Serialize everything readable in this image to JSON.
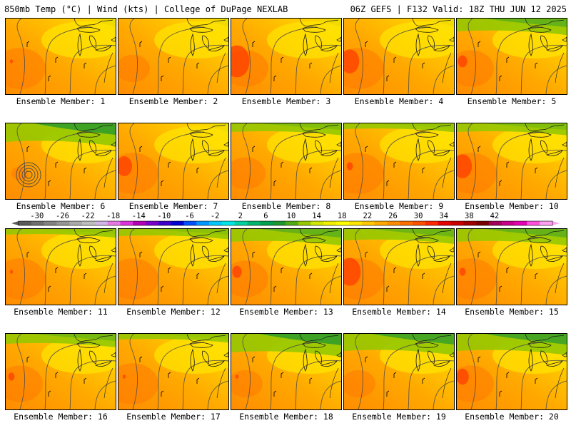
{
  "header": {
    "left": "850mb Temp (°C) | Wind (kts) | College of DuPage NEXLAB",
    "right": "06Z GEFS | F132 Valid: 18Z THU JUN 12 2025"
  },
  "members": [
    {
      "label": "Ensemble Member: 1"
    },
    {
      "label": "Ensemble Member: 2"
    },
    {
      "label": "Ensemble Member: 3"
    },
    {
      "label": "Ensemble Member: 4"
    },
    {
      "label": "Ensemble Member: 5"
    },
    {
      "label": "Ensemble Member: 6"
    },
    {
      "label": "Ensemble Member: 7"
    },
    {
      "label": "Ensemble Member: 8"
    },
    {
      "label": "Ensemble Member: 9"
    },
    {
      "label": "Ensemble Member: 10"
    },
    {
      "label": "Ensemble Member: 11"
    },
    {
      "label": "Ensemble Member: 12"
    },
    {
      "label": "Ensemble Member: 13"
    },
    {
      "label": "Ensemble Member: 14"
    },
    {
      "label": "Ensemble Member: 15"
    },
    {
      "label": "Ensemble Member: 16"
    },
    {
      "label": "Ensemble Member: 17"
    },
    {
      "label": "Ensemble Member: 18"
    },
    {
      "label": "Ensemble Member: 19"
    },
    {
      "label": "Ensemble Member: 20"
    }
  ],
  "colorbar": {
    "tick_labels": [
      "-30",
      "-26",
      "-22",
      "-18",
      "-14",
      "-10",
      "-6",
      "-2",
      "2",
      "6",
      "10",
      "14",
      "18",
      "22",
      "26",
      "30",
      "34",
      "38",
      "42"
    ],
    "colors": [
      "#5a5a5a",
      "#6e6e6e",
      "#828282",
      "#969696",
      "#aaaaaa",
      "#bebebe",
      "#d2b4e6",
      "#e678e6",
      "#dc32dc",
      "#b400b4",
      "#7800c8",
      "#3c00c8",
      "#0000d2",
      "#0050ff",
      "#0096ff",
      "#00c8ff",
      "#00e6e6",
      "#00d2a0",
      "#00b46e",
      "#00a050",
      "#1e9632",
      "#50aa14",
      "#96c800",
      "#d2e600",
      "#f0f000",
      "#ffff00",
      "#ffe600",
      "#ffc800",
      "#ffaa00",
      "#ff8c00",
      "#ff6e00",
      "#ff5000",
      "#ff2800",
      "#e60000",
      "#c80000",
      "#a00000",
      "#780000",
      "#a0005a",
      "#c8008c",
      "#e600b4",
      "#ff50dc",
      "#ffa0f0"
    ]
  }
}
